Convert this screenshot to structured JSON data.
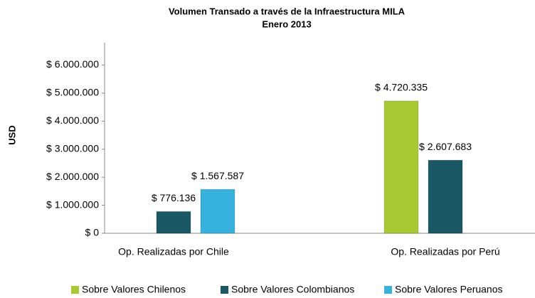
{
  "chart_data": {
    "type": "bar",
    "title": "Volumen Transado  a través de la Infraestructura MILA",
    "subtitle": "Enero 2013",
    "y_label": "USD",
    "categories": [
      "Op. Realizadas por Chile",
      "Op. Realizadas  por Perú"
    ],
    "series": [
      {
        "name": "Sobre Valores Chilenos",
        "color": "#a9c932",
        "values": [
          null,
          4720335
        ],
        "value_labels": [
          null,
          "$ 4.720.335"
        ]
      },
      {
        "name": "Sobre Valores Colombianos",
        "color": "#1b5866",
        "values": [
          776136,
          2607683
        ],
        "value_labels": [
          "$ 776.136",
          "$ 2.607.683"
        ]
      },
      {
        "name": "Sobre Valores Peruanos",
        "color": "#37b2de",
        "values": [
          1567587,
          null
        ],
        "value_labels": [
          "$ 1.567.587",
          null
        ]
      }
    ],
    "ylim": [
      0,
      6800000
    ],
    "yticks": [
      {
        "value": 0,
        "label": "$ 0"
      },
      {
        "value": 1000000,
        "label": "$ 1.000.000"
      },
      {
        "value": 2000000,
        "label": "$ 2.000.000"
      },
      {
        "value": 3000000,
        "label": "$ 3.000.000"
      },
      {
        "value": 4000000,
        "label": "$ 4.000.000"
      },
      {
        "value": 5000000,
        "label": "$ 5.000.000"
      },
      {
        "value": 6000000,
        "label": "$ 6.000.000"
      }
    ],
    "grid": false,
    "legend": "bottom"
  }
}
